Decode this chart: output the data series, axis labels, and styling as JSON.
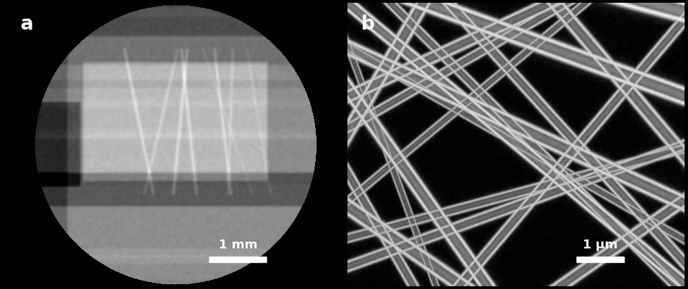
{
  "fig_width": 10.0,
  "fig_height": 4.2,
  "dpi": 100,
  "bg_color": "#000000",
  "panel_a_label": "a",
  "panel_b_label": "b",
  "panel_a_scalebar_text": "1 mm",
  "panel_b_scalebar_text": "1 μm",
  "label_color": "#ffffff",
  "label_fontsize": 20,
  "scalebar_fontsize": 13
}
